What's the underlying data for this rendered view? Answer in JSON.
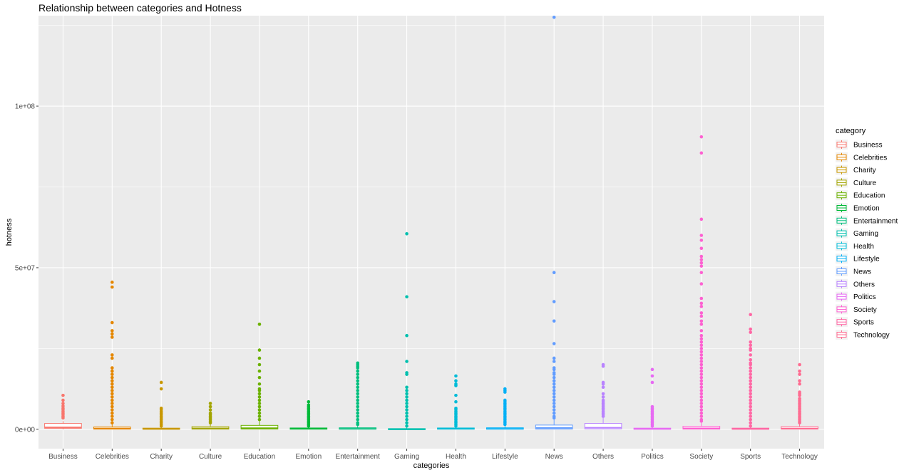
{
  "chart_data": {
    "type": "boxplot",
    "title": "Relationship between categories and Hotness",
    "xlabel": "categories",
    "ylabel": "hotness",
    "ylim": [
      -6000000,
      128000000
    ],
    "y_ticks": [
      {
        "value": 0,
        "label": "0e+00"
      },
      {
        "value": 50000000,
        "label": "5e+07"
      },
      {
        "value": 100000000,
        "label": "1e+08"
      }
    ],
    "panel_background": "#ebebeb",
    "grid_color": "#ffffff",
    "legend": {
      "title": "category",
      "position": "right"
    },
    "categories": [
      "Business",
      "Celebrities",
      "Charity",
      "Culture",
      "Education",
      "Emotion",
      "Entertainment",
      "Gaming",
      "Health",
      "Lifestyle",
      "News",
      "Others",
      "Politics",
      "Society",
      "Sports",
      "Technology"
    ],
    "colors": [
      "#F8766D",
      "#E58700",
      "#C99800",
      "#A3A500",
      "#6BB100",
      "#00BA38",
      "#00BF7D",
      "#00C0AF",
      "#00BCD8",
      "#00B0F6",
      "#619CFF",
      "#B983FF",
      "#E76BF3",
      "#FD61D1",
      "#FF67A4",
      "#FF6C91"
    ],
    "boxes": [
      {
        "category": "Business",
        "q1": 300000,
        "median": 600000,
        "q3": 1800000,
        "whisker_low": 0,
        "whisker_high": 2500000,
        "outliers": [
          10500000,
          9000000,
          8000000,
          7200000,
          6500000,
          6000000,
          5500000,
          5000000,
          4500000,
          4000000,
          3500000
        ]
      },
      {
        "category": "Celebrities",
        "q1": 50000,
        "median": 250000,
        "q3": 700000,
        "whisker_low": 0,
        "whisker_high": 1500000,
        "outliers": [
          45500000,
          44000000,
          33000000,
          30500000,
          29500000,
          28500000,
          23000000,
          22000000,
          19000000,
          18000000,
          17000000,
          16000000,
          15000000,
          14000000,
          13000000,
          12000000,
          11000000,
          10000000,
          9000000,
          8000000,
          7000000,
          6000000,
          5000000,
          4000000,
          3000000,
          2000000
        ]
      },
      {
        "category": "Charity",
        "q1": 20000,
        "median": 100000,
        "q3": 350000,
        "whisker_low": 0,
        "whisker_high": 800000,
        "outliers": [
          14500000,
          12500000,
          6500000,
          6000000,
          5500000,
          5000000,
          4500000,
          4000000,
          3500000,
          3000000,
          2500000,
          2000000,
          1500000,
          1000000
        ]
      },
      {
        "category": "Culture",
        "q1": 50000,
        "median": 300000,
        "q3": 800000,
        "whisker_low": 0,
        "whisker_high": 1800000,
        "outliers": [
          8000000,
          7000000,
          6000000,
          5000000,
          4500000,
          4000000,
          3500000,
          3000000,
          2500000,
          2000000
        ]
      },
      {
        "category": "Education",
        "q1": 80000,
        "median": 350000,
        "q3": 1200000,
        "whisker_low": 0,
        "whisker_high": 2500000,
        "outliers": [
          32500000,
          24500000,
          22000000,
          20000000,
          18000000,
          16000000,
          14000000,
          12500000,
          12000000,
          11000000,
          10000000,
          9000000,
          8000000,
          7000000,
          6000000,
          5000000,
          4000000,
          3000000
        ]
      },
      {
        "category": "Emotion",
        "q1": 30000,
        "median": 150000,
        "q3": 400000,
        "whisker_low": 0,
        "whisker_high": 900000,
        "outliers": [
          8500000,
          7500000,
          7000000,
          6500000,
          6000000,
          5500000,
          5000000,
          4500000,
          4000000,
          3500000,
          3000000,
          2500000,
          2000000,
          1500000,
          1000000
        ]
      },
      {
        "category": "Entertainment",
        "q1": 30000,
        "median": 150000,
        "q3": 450000,
        "whisker_low": 0,
        "whisker_high": 1000000,
        "outliers": [
          20500000,
          20000000,
          19500000,
          19000000,
          18000000,
          17000000,
          16000000,
          15000000,
          14000000,
          13000000,
          12000000,
          11000000,
          10000000,
          9000000,
          8000000,
          7000000,
          6000000,
          5000000,
          4000000,
          3000000,
          2000000,
          1500000
        ]
      },
      {
        "category": "Gaming",
        "q1": 10000,
        "median": 50000,
        "q3": 200000,
        "whisker_low": 0,
        "whisker_high": 500000,
        "outliers": [
          60500000,
          41000000,
          29000000,
          21000000,
          17500000,
          17000000,
          13000000,
          12000000,
          11000000,
          10000000,
          9000000,
          8000000,
          7000000,
          6000000,
          5000000,
          4000000,
          3000000,
          2000000,
          1000000
        ]
      },
      {
        "category": "Health",
        "q1": 30000,
        "median": 150000,
        "q3": 400000,
        "whisker_low": 0,
        "whisker_high": 900000,
        "outliers": [
          16500000,
          15000000,
          14000000,
          13500000,
          10500000,
          8500000,
          6500000,
          6000000,
          5500000,
          5000000,
          4500000,
          4000000,
          3500000,
          3000000,
          2500000,
          2000000,
          1500000,
          1000000
        ]
      },
      {
        "category": "Lifestyle",
        "q1": 30000,
        "median": 150000,
        "q3": 450000,
        "whisker_low": 0,
        "whisker_high": 1000000,
        "outliers": [
          12500000,
          12000000,
          11500000,
          9000000,
          8500000,
          8000000,
          7500000,
          7000000,
          6500000,
          6000000,
          5500000,
          5000000,
          4500000,
          4000000,
          3500000,
          3000000,
          2500000,
          2000000,
          1500000
        ]
      },
      {
        "category": "News",
        "q1": 80000,
        "median": 400000,
        "q3": 1300000,
        "whisker_low": 0,
        "whisker_high": 3000000,
        "outliers": [
          127500000,
          48500000,
          39500000,
          33500000,
          26500000,
          22000000,
          21000000,
          19000000,
          18500000,
          17500000,
          17000000,
          16000000,
          15000000,
          14000000,
          13000000,
          12000000,
          11000000,
          10000000,
          9000000,
          8000000,
          7000000,
          6000000,
          5000000,
          4000000,
          3500000
        ]
      },
      {
        "category": "Others",
        "q1": 150000,
        "median": 500000,
        "q3": 1800000,
        "whisker_low": 0,
        "whisker_high": 3500000,
        "outliers": [
          20000000,
          19500000,
          14500000,
          14000000,
          13000000,
          11000000,
          10000000,
          9000000,
          8500000,
          8000000,
          7500000,
          7000000,
          6500000,
          6000000,
          5500000,
          5000000,
          4500000,
          4000000
        ]
      },
      {
        "category": "Politics",
        "q1": 20000,
        "median": 100000,
        "q3": 350000,
        "whisker_low": 0,
        "whisker_high": 800000,
        "outliers": [
          18500000,
          16500000,
          14500000,
          7000000,
          6500000,
          6000000,
          5500000,
          5000000,
          4500000,
          4000000,
          3500000,
          3000000,
          2500000,
          2000000,
          1500000,
          1000000
        ]
      },
      {
        "category": "Society",
        "q1": 60000,
        "median": 300000,
        "q3": 900000,
        "whisker_low": 0,
        "whisker_high": 2000000,
        "outliers": [
          90500000,
          85500000,
          65000000,
          60000000,
          58500000,
          56000000,
          53500000,
          52500000,
          51500000,
          50500000,
          48500000,
          45000000,
          40500000,
          39000000,
          38000000,
          36000000,
          35000000,
          33500000,
          32500000,
          30500000,
          29000000,
          28000000,
          27000000,
          26000000,
          25000000,
          24000000,
          23000000,
          22000000,
          21000000,
          20000000,
          19000000,
          18000000,
          17000000,
          16000000,
          15000000,
          14000000,
          13000000,
          12000000,
          11000000,
          10000000,
          9000000,
          8000000,
          7000000,
          6000000,
          5000000,
          4000000,
          3000000,
          2500000
        ]
      },
      {
        "category": "Sports",
        "q1": 20000,
        "median": 100000,
        "q3": 350000,
        "whisker_low": 0,
        "whisker_high": 800000,
        "outliers": [
          35500000,
          31000000,
          30000000,
          27000000,
          26000000,
          25000000,
          24500000,
          23000000,
          21500000,
          20500000,
          20000000,
          19000000,
          18000000,
          17000000,
          16000000,
          15000000,
          14000000,
          13000000,
          12000000,
          11000000,
          10000000,
          9000000,
          8000000,
          7000000,
          6000000,
          5000000,
          4000000,
          3000000,
          2000000,
          1000000
        ]
      },
      {
        "category": "Technology",
        "q1": 50000,
        "median": 250000,
        "q3": 800000,
        "whisker_low": 0,
        "whisker_high": 1800000,
        "outliers": [
          20000000,
          18000000,
          17000000,
          15000000,
          14000000,
          11500000,
          11000000,
          10500000,
          9500000,
          9000000,
          8500000,
          8000000,
          7500000,
          7000000,
          6500000,
          6000000,
          5500000,
          5000000,
          4500000,
          4000000,
          3500000,
          3000000,
          2500000,
          2000000
        ]
      }
    ]
  }
}
